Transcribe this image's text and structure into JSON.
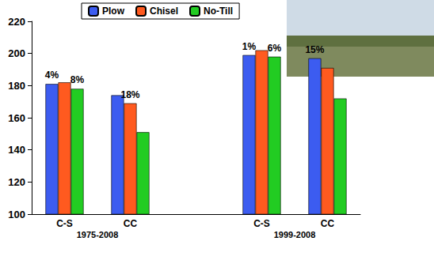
{
  "chart_data": {
    "type": "bar",
    "categories": [
      "C-S",
      "CC",
      null,
      "C-S",
      "CC"
    ],
    "groups": [
      {
        "label": "1975-2008",
        "categories": [
          "C-S",
          "CC"
        ]
      },
      {
        "label": "1999-2008",
        "categories": [
          "C-S",
          "CC"
        ]
      }
    ],
    "series": [
      {
        "name": "Plow",
        "color": "#3c5cf0",
        "values": [
          181,
          174,
          null,
          199,
          197
        ],
        "annotations": [
          "4%",
          null,
          null,
          "1%",
          "15%"
        ]
      },
      {
        "name": "Chisel",
        "color": "#ff5a1f",
        "values": [
          182,
          169,
          null,
          202,
          191
        ],
        "annotations": [
          null,
          "18%",
          null,
          null,
          null
        ]
      },
      {
        "name": "No-Till",
        "color": "#22cc22",
        "values": [
          178,
          151,
          null,
          198,
          172
        ],
        "annotations": [
          "8%",
          null,
          null,
          "6%",
          null
        ]
      }
    ],
    "ylim": [
      100,
      220
    ],
    "yticks": [
      100,
      120,
      140,
      160,
      180,
      200,
      220
    ],
    "grid": false,
    "legend": "top"
  }
}
